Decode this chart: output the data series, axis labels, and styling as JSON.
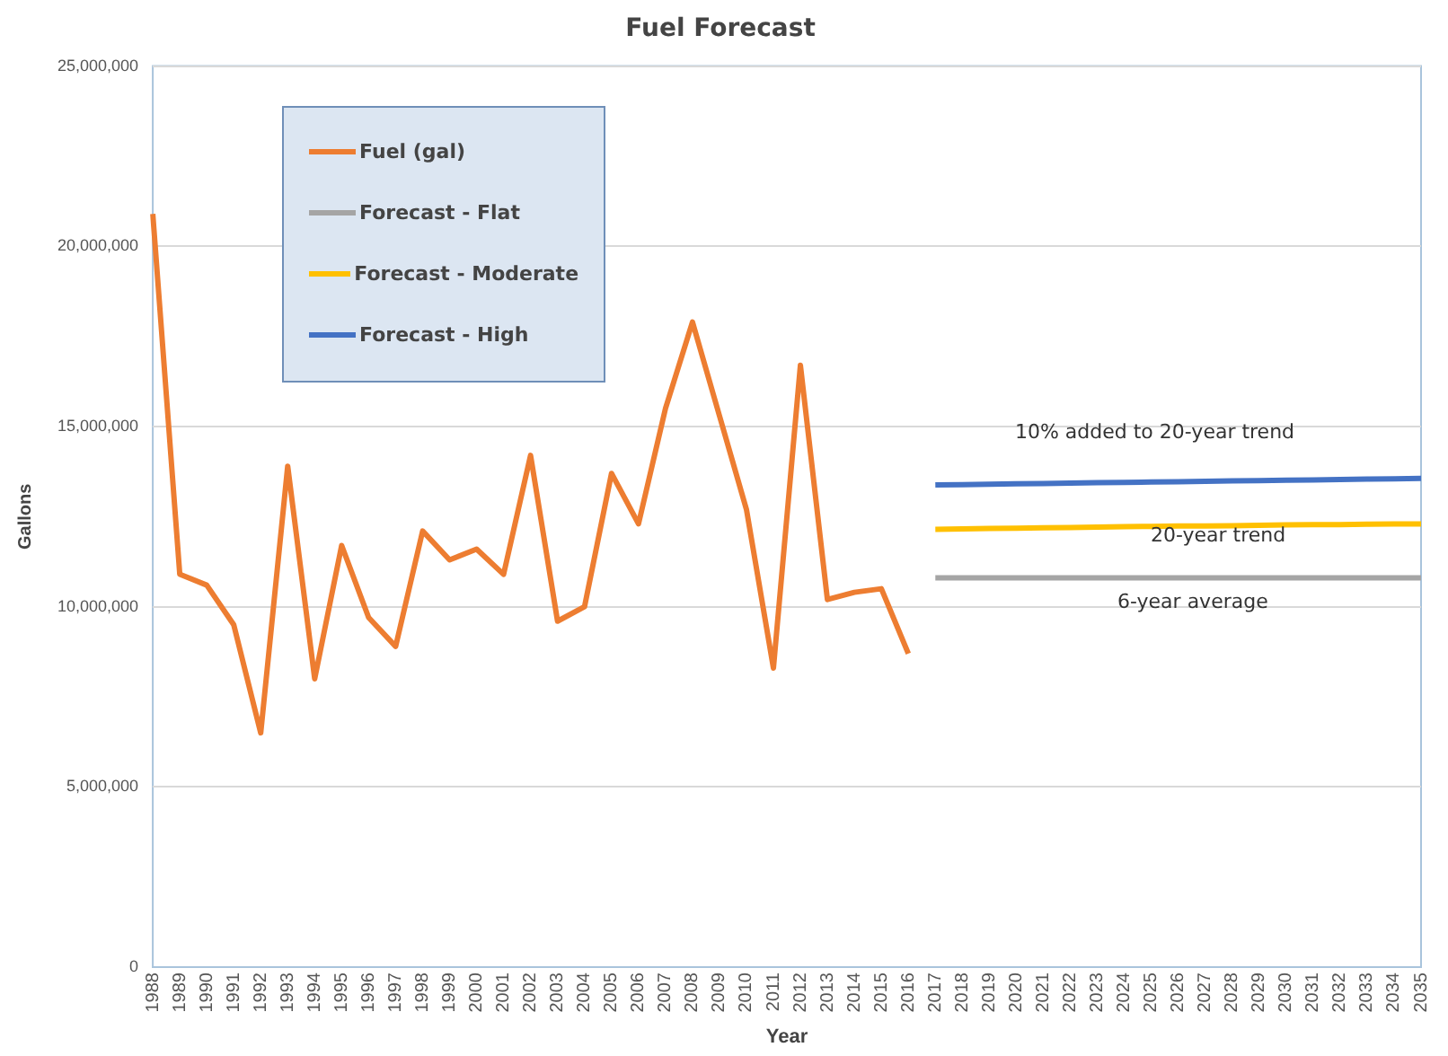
{
  "chart_data": {
    "type": "line",
    "title": "Fuel Forecast",
    "xlabel": "Year",
    "ylabel": "Gallons",
    "categories": [
      "1988",
      "1989",
      "1990",
      "1991",
      "1992",
      "1993",
      "1994",
      "1995",
      "1996",
      "1997",
      "1998",
      "1999",
      "2000",
      "2001",
      "2002",
      "2003",
      "2004",
      "2005",
      "2006",
      "2007",
      "2008",
      "2009",
      "2010",
      "2011",
      "2012",
      "2013",
      "2014",
      "2015",
      "2016",
      "2017",
      "2018",
      "2019",
      "2020",
      "2021",
      "2022",
      "2023",
      "2024",
      "2025",
      "2026",
      "2027",
      "2028",
      "2029",
      "2030",
      "2031",
      "2032",
      "2033",
      "2034",
      "2035"
    ],
    "series": [
      {
        "name": "Fuel (gal)",
        "color": "#ed7d31",
        "values": [
          20900000,
          10900000,
          10600000,
          9500000,
          6500000,
          13900000,
          8000000,
          11700000,
          9700000,
          8900000,
          12100000,
          11300000,
          11600000,
          10900000,
          14200000,
          9600000,
          10000000,
          13700000,
          12300000,
          15500000,
          17900000,
          15300000,
          12700000,
          8300000,
          16700000,
          10200000,
          10400000,
          10500000,
          8700000,
          null,
          null,
          null,
          null,
          null,
          null,
          null,
          null,
          null,
          null,
          null,
          null,
          null,
          null,
          null,
          null,
          null,
          null,
          null
        ]
      },
      {
        "name": "Forecast - Flat",
        "color": "#a5a5a5",
        "values": [
          null,
          null,
          null,
          null,
          null,
          null,
          null,
          null,
          null,
          null,
          null,
          null,
          null,
          null,
          null,
          null,
          null,
          null,
          null,
          null,
          null,
          null,
          null,
          null,
          null,
          null,
          null,
          null,
          null,
          10800000,
          10800000,
          10800000,
          10800000,
          10800000,
          10800000,
          10800000,
          10800000,
          10800000,
          10800000,
          10800000,
          10800000,
          10800000,
          10800000,
          10800000,
          10800000,
          10800000,
          10800000,
          10800000
        ]
      },
      {
        "name": "Forecast - Moderate",
        "color": "#ffc000",
        "values": [
          null,
          null,
          null,
          null,
          null,
          null,
          null,
          null,
          null,
          null,
          null,
          null,
          null,
          null,
          null,
          null,
          null,
          null,
          null,
          null,
          null,
          null,
          null,
          null,
          null,
          null,
          null,
          null,
          null,
          12150000,
          12160000,
          12170000,
          12180000,
          12190000,
          12200000,
          12210000,
          12220000,
          12230000,
          12240000,
          12240000,
          12250000,
          12260000,
          12270000,
          12280000,
          12280000,
          12290000,
          12300000,
          12300000
        ]
      },
      {
        "name": "Forecast - High",
        "color": "#4472c4",
        "values": [
          null,
          null,
          null,
          null,
          null,
          null,
          null,
          null,
          null,
          null,
          null,
          null,
          null,
          null,
          null,
          null,
          null,
          null,
          null,
          null,
          null,
          null,
          null,
          null,
          null,
          null,
          null,
          null,
          null,
          13380000,
          13390000,
          13400000,
          13410000,
          13420000,
          13430000,
          13440000,
          13450000,
          13460000,
          13470000,
          13480000,
          13490000,
          13500000,
          13510000,
          13520000,
          13530000,
          13540000,
          13550000,
          13560000
        ]
      }
    ],
    "ylim": [
      0,
      25000000
    ],
    "yticks": [
      {
        "value": 0,
        "label": "0"
      },
      {
        "value": 5000000,
        "label": "5,000,000"
      },
      {
        "value": 10000000,
        "label": "10,000,000"
      },
      {
        "value": 15000000,
        "label": "15,000,000"
      },
      {
        "value": 20000000,
        "label": "20,000,000"
      },
      {
        "value": 25000000,
        "label": "25,000,000"
      }
    ],
    "grid": "y",
    "legend": "top left",
    "marker": "none",
    "line_style": "solid",
    "annotations": [
      "10% added to 20-year trend",
      "20-year trend",
      "6-year average"
    ]
  }
}
